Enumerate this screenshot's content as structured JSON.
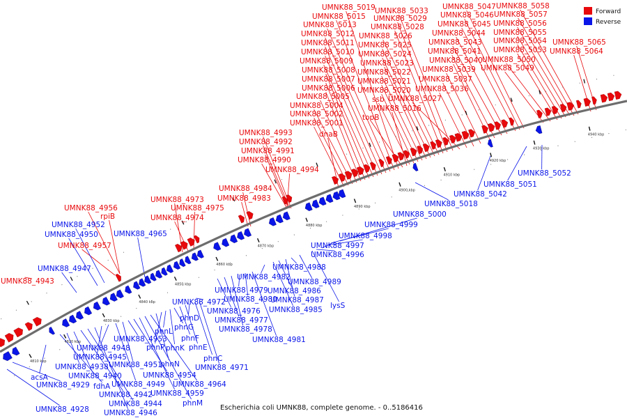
{
  "caption": "Escherichia coli UMNK88, complete genome. - 0..5186416",
  "legend": [
    {
      "label": "Forward",
      "color": "#e8090c"
    },
    {
      "label": "Reverse",
      "color": "#0a15e8"
    }
  ],
  "colors": {
    "forward": "#e8090c",
    "reverse": "#0a15e8",
    "backbone": "#6d6d6d",
    "ticks": "#111111"
  },
  "ticks": [
    "4810 kbp",
    "4820 kbp",
    "4830 kbp",
    "4840 kbp",
    "4850 kbp",
    "4860 kbp",
    "4870 kbp",
    "4880 kbp",
    "4890 kbp",
    "4900 kbp",
    "4910 kbp",
    "4920 kbp",
    "4930 kbp",
    "4940 kbp"
  ],
  "forward_labels": [
    "UMNK88_4943",
    "UMNK88_4957",
    "rpiB",
    "UMNK88_4956",
    "UMNK88_4974",
    "UMNK88_4975",
    "UMNK88_4973",
    "UMNK88_4983",
    "UMNK88_4984",
    "UMNK88_4994",
    "UMNK88_4990",
    "UMNK88_4991",
    "UMNK88_4992",
    "UMNK88_4993",
    "dnaB",
    "UMNK88_5001",
    "UMNK88_5002",
    "UMNK88_5004",
    "UMNK88_5005",
    "UMNK88_5006",
    "UMNK88_5007",
    "UMNK88_5008",
    "UMNK88_5009",
    "UMNK88_5010",
    "UMNK88_5011",
    "UMNK88_5012",
    "UMNK88_5013",
    "UMNK88_5015",
    "UMNK88_5019",
    "topB",
    "UMNK88_5016",
    "ssb",
    "UMNK88_5020",
    "UMNK88_5021",
    "UMNK88_5022",
    "UMNK88_5023",
    "UMNK88_5024",
    "UMNK88_5025",
    "UMNK88_5026",
    "UMNK88_5028",
    "UMNK88_5029",
    "UMNK88_5033",
    "UMNK88_5027",
    "UMNK88_5036",
    "UMNK88_5037",
    "UMNK88_5039",
    "UMNK88_5040",
    "UMNK88_5041",
    "UMNK88_5043",
    "UMNK88_5044",
    "UMNK88_5045",
    "UMNK88_5046",
    "UMNK88_5047",
    "UMNK88_5049",
    "UMNK88_5050",
    "UMNK88_5053",
    "UMNK88_5054",
    "UMNK88_5055",
    "UMNK88_5056",
    "UMNK88_5057",
    "UMNK88_5058",
    "UMNK88_5064",
    "UMNK88_5065"
  ],
  "reverse_labels": [
    "UMNK88_4928",
    "UMNK88_4929",
    "acsA",
    "fdhA",
    "UMNK88_4938",
    "UMNK88_4940",
    "UMNK88_4942",
    "UMNK88_4944",
    "UMNK88_4946",
    "UMNK88_4945",
    "UMNK88_4948",
    "UMNK88_4949",
    "UMNK88_4951",
    "UMNK88_4953",
    "UMNK88_4954",
    "UMNK88_4959",
    "phnM",
    "UMNK88_4964",
    "phnN",
    "phnP",
    "phnL",
    "phnK",
    "phnG",
    "phnF",
    "phnE",
    "phnD",
    "phnC",
    "UMNK88_4971",
    "UMNK88_4972",
    "UMNK88_4947",
    "UMNK88_4950",
    "UMNK88_4952",
    "UMNK88_4965",
    "UMNK88_4976",
    "UMNK88_4977",
    "UMNK88_4978",
    "UMNK88_4979",
    "UMNK88_4980",
    "UMNK88_4981",
    "UMNK88_4982",
    "UMNK88_4985",
    "UMNK88_4986",
    "UMNK88_4987",
    "UMNK88_4988",
    "UMNK88_4989",
    "lysS",
    "UMNK88_4996",
    "UMNK88_4997",
    "UMNK88_4998",
    "UMNK88_4999",
    "UMNK88_5000",
    "UMNK88_5018",
    "UMNK88_5042",
    "UMNK88_5051",
    "UMNK88_5052"
  ]
}
